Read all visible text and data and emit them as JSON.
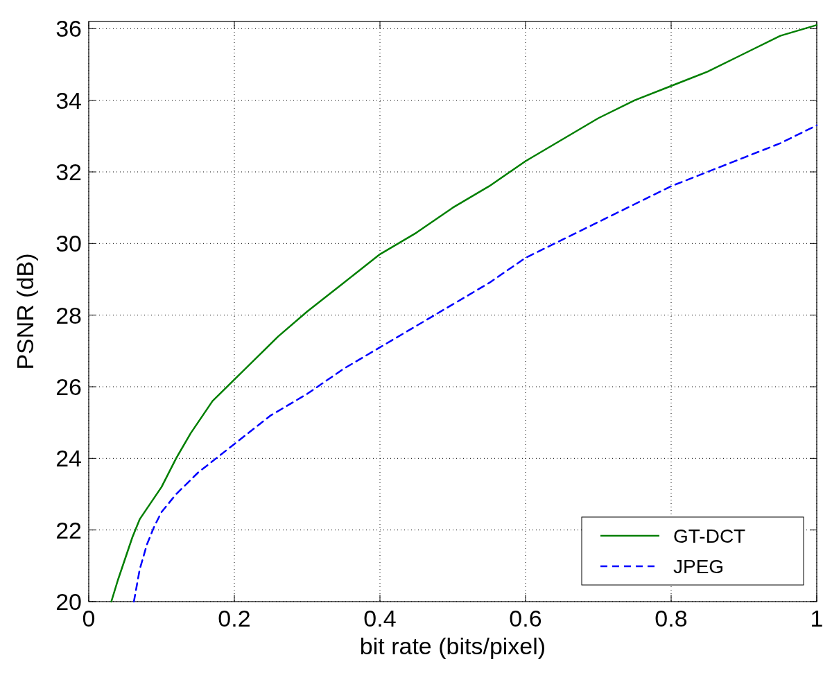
{
  "chart_data": {
    "type": "line",
    "xlabel": "bit rate (bits/pixel)",
    "ylabel": "PSNR (dB)",
    "xlim": [
      0,
      1
    ],
    "ylim": [
      20,
      36.2
    ],
    "xticks": [
      0,
      0.2,
      0.4,
      0.6,
      0.8,
      1
    ],
    "yticks": [
      20,
      22,
      24,
      26,
      28,
      30,
      32,
      34,
      36
    ],
    "grid": true,
    "legend": "bottom right",
    "marker": "none",
    "series": [
      {
        "name": "GT-DCT",
        "color": "#007f00",
        "line_style": "solid",
        "x": [
          0.031,
          0.04,
          0.05,
          0.06,
          0.07,
          0.08,
          0.1,
          0.12,
          0.14,
          0.17,
          0.2,
          0.23,
          0.26,
          0.3,
          0.35,
          0.4,
          0.45,
          0.5,
          0.55,
          0.6,
          0.65,
          0.7,
          0.75,
          0.8,
          0.85,
          0.9,
          0.95,
          1.0
        ],
        "values": [
          20.0,
          20.6,
          21.2,
          21.8,
          22.3,
          22.6,
          23.2,
          24.0,
          24.7,
          25.6,
          26.2,
          26.8,
          27.4,
          28.1,
          28.9,
          29.7,
          30.3,
          31.0,
          31.6,
          32.3,
          32.9,
          33.5,
          34.0,
          34.4,
          34.8,
          35.3,
          35.8,
          36.1
        ]
      },
      {
        "name": "JPEG",
        "color": "#0000ff",
        "line_style": "dashed",
        "x": [
          0.062,
          0.07,
          0.08,
          0.09,
          0.1,
          0.12,
          0.15,
          0.2,
          0.25,
          0.3,
          0.35,
          0.4,
          0.45,
          0.5,
          0.55,
          0.6,
          0.65,
          0.7,
          0.75,
          0.8,
          0.85,
          0.9,
          0.95,
          1.0
        ],
        "values": [
          20.0,
          20.9,
          21.6,
          22.1,
          22.5,
          23.0,
          23.6,
          24.4,
          25.2,
          25.8,
          26.5,
          27.1,
          27.7,
          28.3,
          28.9,
          29.6,
          30.1,
          30.6,
          31.1,
          31.6,
          32.0,
          32.4,
          32.8,
          33.3
        ]
      }
    ]
  }
}
